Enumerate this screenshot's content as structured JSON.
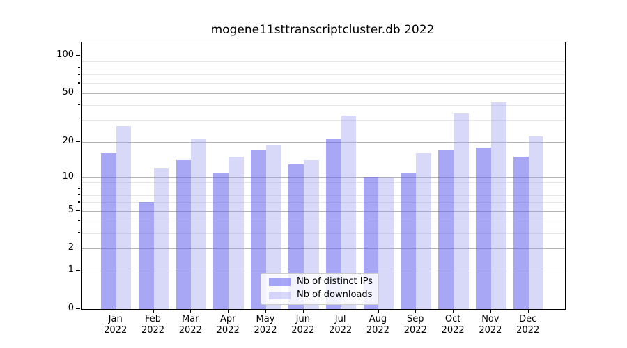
{
  "title": "mogene11sttranscriptcluster.db 2022",
  "chart_data": {
    "type": "bar",
    "title": "mogene11sttranscriptcluster.db 2022",
    "categories": [
      "Jan",
      "Feb",
      "Mar",
      "Apr",
      "May",
      "Jun",
      "Jul",
      "Aug",
      "Sep",
      "Oct",
      "Nov",
      "Dec"
    ],
    "year": "2022",
    "series": [
      {
        "name": "Nb of distinct IPs",
        "color": "rgba(95,95,238,0.55)",
        "values": [
          16,
          6,
          14,
          11,
          17,
          13,
          21,
          10,
          11,
          17,
          18,
          15
        ]
      },
      {
        "name": "Nb of downloads",
        "color": "rgba(153,153,240,0.38)",
        "values": [
          27,
          12,
          21,
          15,
          19,
          14,
          33,
          10,
          16,
          34,
          42,
          22
        ]
      }
    ],
    "xlabel": "",
    "ylabel": "",
    "y_scale": "log10(value+1)",
    "y_ticks": [
      0,
      1,
      2,
      5,
      10,
      20,
      50,
      100
    ],
    "y_minor_ticks": [
      3,
      4,
      6,
      7,
      8,
      9,
      30,
      40,
      60,
      70,
      80,
      90
    ],
    "ylim": [
      0,
      127
    ],
    "grid": true,
    "legend_position": "lower center"
  },
  "colors": {
    "grid_major": "#b5b5b5",
    "grid_minor": "#e7e7e7",
    "axis": "#000000",
    "legend_border": "#cccccc"
  }
}
